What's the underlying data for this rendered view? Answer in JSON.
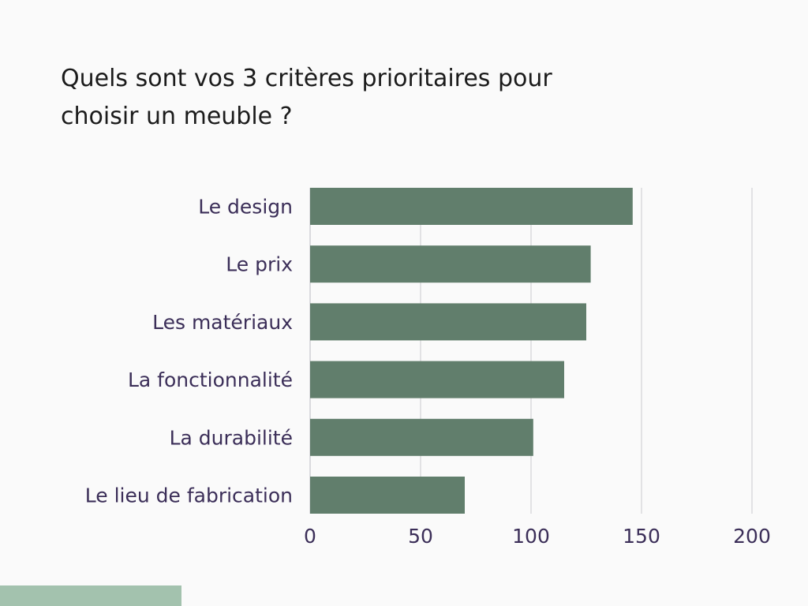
{
  "title": "Quels sont vos 3 critères prioritaires pour choisir un meuble ?",
  "colors": {
    "background": "#fafafa",
    "bar": "#617e6c",
    "footer_strip": "#a3c2ae",
    "label_text": "#3b2e58"
  },
  "chart_data": {
    "type": "bar",
    "orientation": "horizontal",
    "title": "Quels sont vos 3 critères prioritaires pour choisir un meuble ?",
    "xlabel": "",
    "ylabel": "",
    "categories": [
      "Le design",
      "Le prix",
      "Les matériaux",
      "La fonctionnalité",
      "La durabilité",
      "Le lieu de fabrication"
    ],
    "values": [
      146,
      127,
      125,
      115,
      101,
      70
    ],
    "xlim": [
      0,
      200
    ],
    "xticks": [
      0,
      50,
      100,
      150,
      200
    ],
    "xtick_labels": [
      "0",
      "50",
      "100",
      "150",
      "200"
    ],
    "grid": true,
    "legend": "none"
  }
}
